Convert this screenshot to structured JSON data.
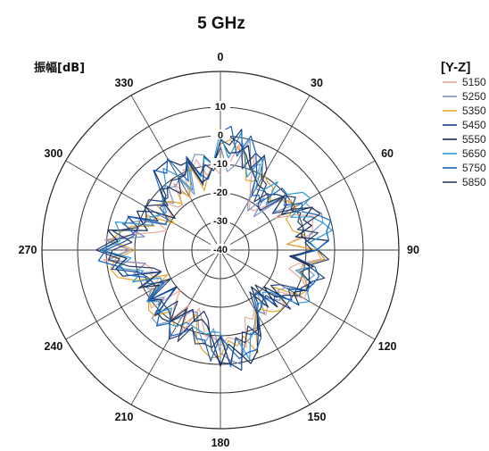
{
  "chart_data": {
    "type": "line",
    "subtype": "polar",
    "title": "5 GHz",
    "radial_unit_label": "振幅[dB]",
    "rlim": [
      -40,
      10
    ],
    "radial_ticks": [
      "10",
      "0",
      "-10",
      "-20",
      "-30",
      "-40"
    ],
    "angle_ticks": [
      "0",
      "30",
      "60",
      "90",
      "120",
      "150",
      "180",
      "210",
      "240",
      "270",
      "300",
      "330"
    ],
    "legend_title": "[Y-Z]",
    "legend_placement": "top-right",
    "grid": true,
    "series": [
      {
        "name": "5150",
        "color": "#e8a898",
        "base": -12
      },
      {
        "name": "5250",
        "color": "#7a92c8",
        "base": -11
      },
      {
        "name": "5350",
        "color": "#e3a52a",
        "base": -11
      },
      {
        "name": "5450",
        "color": "#1f3d7a",
        "base": -10
      },
      {
        "name": "5550",
        "color": "#0e2a5c",
        "base": -10
      },
      {
        "name": "5650",
        "color": "#2a98d8",
        "base": -9
      },
      {
        "name": "5750",
        "color": "#1560c0",
        "base": -9
      },
      {
        "name": "5850",
        "color": "#2c3e66",
        "base": -10
      }
    ]
  }
}
